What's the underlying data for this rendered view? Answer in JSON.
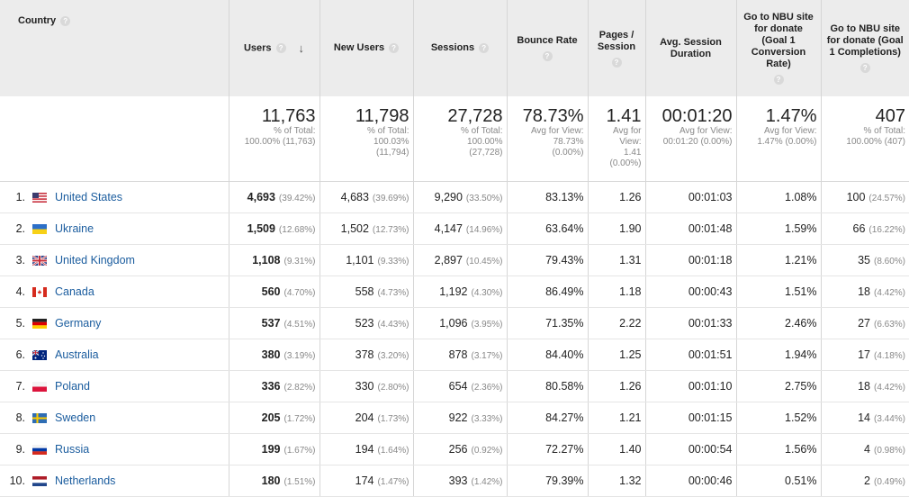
{
  "headers": {
    "country": "Country",
    "users": "Users",
    "new_users": "New Users",
    "sessions": "Sessions",
    "bounce_rate": "Bounce Rate",
    "pages_session": "Pages / Session",
    "avg_session_duration": "Avg. Session Duration",
    "goal1_rate": "Go to NBU site for donate (Goal 1 Conversion Rate)",
    "goal1_completions": "Go to NBU site for donate (Goal 1 Completions)"
  },
  "icons": {
    "help": "help-circle-icon",
    "sort": "sort-descending-arrow-icon"
  },
  "totals": {
    "users": {
      "value": "11,763",
      "line1": "% of Total:",
      "line2": "100.00% (11,763)"
    },
    "new_users": {
      "value": "11,798",
      "line1": "% of Total:",
      "line2": "100.03%",
      "line3": "(11,794)"
    },
    "sessions": {
      "value": "27,728",
      "line1": "% of Total:",
      "line2": "100.00%",
      "line3": "(27,728)"
    },
    "bounce_rate": {
      "value": "78.73%",
      "line1": "Avg for View:",
      "line2": "78.73%",
      "line3": "(0.00%)"
    },
    "pages_session": {
      "value": "1.41",
      "line1": "Avg for",
      "line2": "View:",
      "line3": "1.41",
      "line4": "(0.00%)"
    },
    "avg_session_duration": {
      "value": "00:01:20",
      "line1": "Avg for View:",
      "line2": "00:01:20 (0.00%)"
    },
    "goal1_rate": {
      "value": "1.47%",
      "line1": "Avg for View:",
      "line2": "1.47% (0.00%)"
    },
    "goal1_completions": {
      "value": "407",
      "line1": "% of Total:",
      "line2": "100.00% (407)"
    }
  },
  "rows": [
    {
      "index": "1.",
      "flag": "us-flag-icon",
      "country": "United States",
      "users": "4,693",
      "users_pct": "(39.42%)",
      "new_users": "4,683",
      "new_users_pct": "(39.69%)",
      "sessions": "9,290",
      "sessions_pct": "(33.50%)",
      "bounce_rate": "83.13%",
      "pages_session": "1.26",
      "duration": "00:01:03",
      "goal_rate": "1.08%",
      "goal_comp": "100",
      "goal_comp_pct": "(24.57%)"
    },
    {
      "index": "2.",
      "flag": "ua-flag-icon",
      "country": "Ukraine",
      "users": "1,509",
      "users_pct": "(12.68%)",
      "new_users": "1,502",
      "new_users_pct": "(12.73%)",
      "sessions": "4,147",
      "sessions_pct": "(14.96%)",
      "bounce_rate": "63.64%",
      "pages_session": "1.90",
      "duration": "00:01:48",
      "goal_rate": "1.59%",
      "goal_comp": "66",
      "goal_comp_pct": "(16.22%)"
    },
    {
      "index": "3.",
      "flag": "gb-flag-icon",
      "country": "United Kingdom",
      "users": "1,108",
      "users_pct": "(9.31%)",
      "new_users": "1,101",
      "new_users_pct": "(9.33%)",
      "sessions": "2,897",
      "sessions_pct": "(10.45%)",
      "bounce_rate": "79.43%",
      "pages_session": "1.31",
      "duration": "00:01:18",
      "goal_rate": "1.21%",
      "goal_comp": "35",
      "goal_comp_pct": "(8.60%)"
    },
    {
      "index": "4.",
      "flag": "ca-flag-icon",
      "country": "Canada",
      "users": "560",
      "users_pct": "(4.70%)",
      "new_users": "558",
      "new_users_pct": "(4.73%)",
      "sessions": "1,192",
      "sessions_pct": "(4.30%)",
      "bounce_rate": "86.49%",
      "pages_session": "1.18",
      "duration": "00:00:43",
      "goal_rate": "1.51%",
      "goal_comp": "18",
      "goal_comp_pct": "(4.42%)"
    },
    {
      "index": "5.",
      "flag": "de-flag-icon",
      "country": "Germany",
      "users": "537",
      "users_pct": "(4.51%)",
      "new_users": "523",
      "new_users_pct": "(4.43%)",
      "sessions": "1,096",
      "sessions_pct": "(3.95%)",
      "bounce_rate": "71.35%",
      "pages_session": "2.22",
      "duration": "00:01:33",
      "goal_rate": "2.46%",
      "goal_comp": "27",
      "goal_comp_pct": "(6.63%)"
    },
    {
      "index": "6.",
      "flag": "au-flag-icon",
      "country": "Australia",
      "users": "380",
      "users_pct": "(3.19%)",
      "new_users": "378",
      "new_users_pct": "(3.20%)",
      "sessions": "878",
      "sessions_pct": "(3.17%)",
      "bounce_rate": "84.40%",
      "pages_session": "1.25",
      "duration": "00:01:51",
      "goal_rate": "1.94%",
      "goal_comp": "17",
      "goal_comp_pct": "(4.18%)"
    },
    {
      "index": "7.",
      "flag": "pl-flag-icon",
      "country": "Poland",
      "users": "336",
      "users_pct": "(2.82%)",
      "new_users": "330",
      "new_users_pct": "(2.80%)",
      "sessions": "654",
      "sessions_pct": "(2.36%)",
      "bounce_rate": "80.58%",
      "pages_session": "1.26",
      "duration": "00:01:10",
      "goal_rate": "2.75%",
      "goal_comp": "18",
      "goal_comp_pct": "(4.42%)"
    },
    {
      "index": "8.",
      "flag": "se-flag-icon",
      "country": "Sweden",
      "users": "205",
      "users_pct": "(1.72%)",
      "new_users": "204",
      "new_users_pct": "(1.73%)",
      "sessions": "922",
      "sessions_pct": "(3.33%)",
      "bounce_rate": "84.27%",
      "pages_session": "1.21",
      "duration": "00:01:15",
      "goal_rate": "1.52%",
      "goal_comp": "14",
      "goal_comp_pct": "(3.44%)"
    },
    {
      "index": "9.",
      "flag": "ru-flag-icon",
      "country": "Russia",
      "users": "199",
      "users_pct": "(1.67%)",
      "new_users": "194",
      "new_users_pct": "(1.64%)",
      "sessions": "256",
      "sessions_pct": "(0.92%)",
      "bounce_rate": "72.27%",
      "pages_session": "1.40",
      "duration": "00:00:54",
      "goal_rate": "1.56%",
      "goal_comp": "4",
      "goal_comp_pct": "(0.98%)"
    },
    {
      "index": "10.",
      "flag": "nl-flag-icon",
      "country": "Netherlands",
      "users": "180",
      "users_pct": "(1.51%)",
      "new_users": "174",
      "new_users_pct": "(1.47%)",
      "sessions": "393",
      "sessions_pct": "(1.42%)",
      "bounce_rate": "79.39%",
      "pages_session": "1.32",
      "duration": "00:00:46",
      "goal_rate": "0.51%",
      "goal_comp": "2",
      "goal_comp_pct": "(0.49%)"
    }
  ],
  "colors": {
    "link": "#1a5c9e",
    "header_bg": "#ececec",
    "muted": "#888888"
  }
}
